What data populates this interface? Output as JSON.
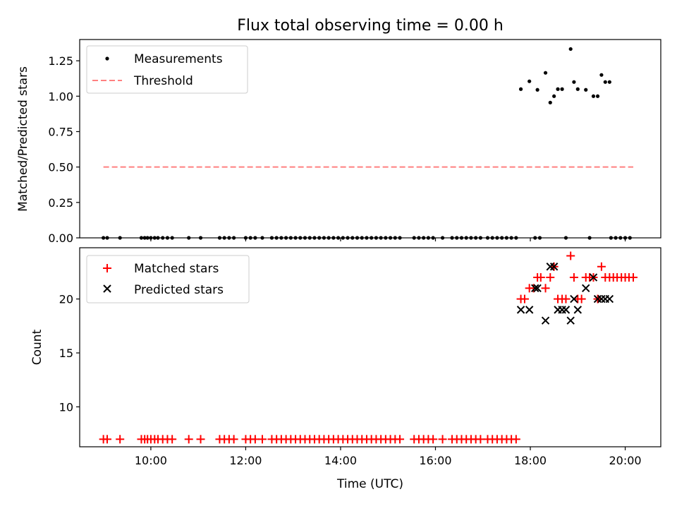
{
  "chart_data": [
    {
      "type": "scatter",
      "title": "Flux total observing time = 0.00 h",
      "xlabel": "",
      "ylabel": "Matched/Predicted stars",
      "xlim": [
        8.5,
        20.75
      ],
      "ylim": [
        0.0,
        1.4
      ],
      "yticks": [
        0.0,
        0.25,
        0.5,
        0.75,
        1.0,
        1.25
      ],
      "ytick_labels": [
        "0.00",
        "0.25",
        "0.50",
        "0.75",
        "1.00",
        "1.25"
      ],
      "legend_position": "top-left",
      "series": [
        {
          "name": "Measurements",
          "marker": "dot",
          "color": "#000000",
          "x": [
            9.0,
            9.08,
            9.35,
            9.8,
            9.87,
            9.93,
            10.0,
            10.08,
            10.15,
            10.25,
            10.35,
            10.45,
            10.8,
            11.05,
            11.45,
            11.55,
            11.65,
            11.75,
            12.0,
            12.1,
            12.2,
            12.35,
            12.55,
            12.65,
            12.75,
            12.85,
            12.95,
            13.05,
            13.15,
            13.25,
            13.35,
            13.45,
            13.55,
            13.65,
            13.75,
            13.85,
            13.95,
            14.05,
            14.15,
            14.25,
            14.35,
            14.45,
            14.55,
            14.65,
            14.75,
            14.85,
            14.95,
            15.05,
            15.15,
            15.25,
            15.55,
            15.65,
            15.75,
            15.85,
            15.95,
            16.15,
            16.35,
            16.45,
            16.55,
            16.65,
            16.75,
            16.85,
            16.95,
            17.1,
            17.2,
            17.3,
            17.4,
            17.5,
            17.6,
            17.7,
            18.1,
            18.2,
            18.75,
            19.25,
            19.7,
            19.8,
            19.9,
            20.0,
            20.1,
            17.8,
            17.98,
            18.15,
            18.32,
            18.42,
            18.5,
            18.58,
            18.67,
            18.85,
            18.92,
            19.0,
            19.17,
            19.33,
            19.42,
            19.5,
            19.58,
            19.67
          ],
          "y": [
            0,
            0,
            0,
            0,
            0,
            0,
            0,
            0,
            0,
            0,
            0,
            0,
            0,
            0,
            0,
            0,
            0,
            0,
            0,
            0,
            0,
            0,
            0,
            0,
            0,
            0,
            0,
            0,
            0,
            0,
            0,
            0,
            0,
            0,
            0,
            0,
            0,
            0,
            0,
            0,
            0,
            0,
            0,
            0,
            0,
            0,
            0,
            0,
            0,
            0,
            0,
            0,
            0,
            0,
            0,
            0,
            0,
            0,
            0,
            0,
            0,
            0,
            0,
            0,
            0,
            0,
            0,
            0,
            0,
            0,
            0,
            0,
            0,
            0,
            0,
            0,
            0,
            0,
            0,
            1.05,
            1.105,
            1.045,
            1.165,
            0.955,
            1.0,
            1.05,
            1.05,
            1.333,
            1.1,
            1.05,
            1.045,
            1.0,
            1.0,
            1.15,
            1.1,
            1.1
          ]
        },
        {
          "name": "Threshold",
          "marker": "dashed-line",
          "color": "#ff8080",
          "x": [
            9.0,
            20.17
          ],
          "y": [
            0.5,
            0.5
          ]
        }
      ]
    },
    {
      "type": "scatter",
      "title": "",
      "xlabel": "Time (UTC)",
      "ylabel": "Count",
      "xlim": [
        8.5,
        20.75
      ],
      "ylim": [
        6.3,
        24.75
      ],
      "yticks": [
        10,
        15,
        20
      ],
      "ytick_labels": [
        "10",
        "15",
        "20"
      ],
      "xticks": [
        10,
        12,
        14,
        16,
        18,
        20
      ],
      "xtick_labels": [
        "10:00",
        "12:00",
        "14:00",
        "16:00",
        "18:00",
        "20:00"
      ],
      "legend_position": "top-left",
      "series": [
        {
          "name": "Matched stars",
          "marker": "plus",
          "color": "#ff0000",
          "x": [
            9.0,
            9.08,
            9.35,
            9.8,
            9.87,
            9.93,
            10.0,
            10.08,
            10.15,
            10.25,
            10.35,
            10.45,
            10.8,
            11.05,
            11.45,
            11.55,
            11.65,
            11.75,
            12.0,
            12.1,
            12.2,
            12.35,
            12.55,
            12.65,
            12.75,
            12.85,
            12.95,
            13.05,
            13.15,
            13.25,
            13.35,
            13.45,
            13.55,
            13.65,
            13.75,
            13.85,
            13.95,
            14.05,
            14.15,
            14.25,
            14.35,
            14.45,
            14.55,
            14.65,
            14.75,
            14.85,
            14.95,
            15.05,
            15.15,
            15.25,
            15.55,
            15.65,
            15.75,
            15.85,
            15.95,
            16.15,
            16.35,
            16.45,
            16.55,
            16.65,
            16.75,
            16.85,
            16.95,
            17.1,
            17.2,
            17.3,
            17.4,
            17.5,
            17.6,
            17.7,
            17.8,
            17.88,
            17.98,
            18.07,
            18.15,
            18.22,
            18.32,
            18.42,
            18.5,
            18.58,
            18.67,
            18.75,
            18.85,
            18.92,
            19.0,
            19.08,
            19.17,
            19.25,
            19.33,
            19.42,
            19.5,
            19.58,
            19.67,
            19.75,
            19.83,
            19.92,
            20.0,
            20.08,
            20.17
          ],
          "y": [
            7,
            7,
            7,
            7,
            7,
            7,
            7,
            7,
            7,
            7,
            7,
            7,
            7,
            7,
            7,
            7,
            7,
            7,
            7,
            7,
            7,
            7,
            7,
            7,
            7,
            7,
            7,
            7,
            7,
            7,
            7,
            7,
            7,
            7,
            7,
            7,
            7,
            7,
            7,
            7,
            7,
            7,
            7,
            7,
            7,
            7,
            7,
            7,
            7,
            7,
            7,
            7,
            7,
            7,
            7,
            7,
            7,
            7,
            7,
            7,
            7,
            7,
            7,
            7,
            7,
            7,
            7,
            7,
            7,
            7,
            20,
            20,
            21,
            21,
            22,
            22,
            21,
            22,
            23,
            20,
            20,
            20,
            24,
            22,
            20,
            20,
            22,
            22,
            22,
            20,
            23,
            22,
            22,
            22,
            22,
            22,
            22,
            22,
            22
          ]
        },
        {
          "name": "Predicted stars",
          "marker": "x",
          "color": "#000000",
          "x": [
            17.8,
            17.98,
            18.1,
            18.15,
            18.32,
            18.42,
            18.5,
            18.58,
            18.67,
            18.75,
            18.85,
            18.92,
            19.0,
            19.17,
            19.33,
            19.42,
            19.5,
            19.58,
            19.67
          ],
          "y": [
            19,
            19,
            21,
            21,
            18,
            23,
            23,
            19,
            19,
            19,
            18,
            20,
            19,
            21,
            22,
            20,
            20,
            20,
            20
          ]
        }
      ]
    }
  ]
}
